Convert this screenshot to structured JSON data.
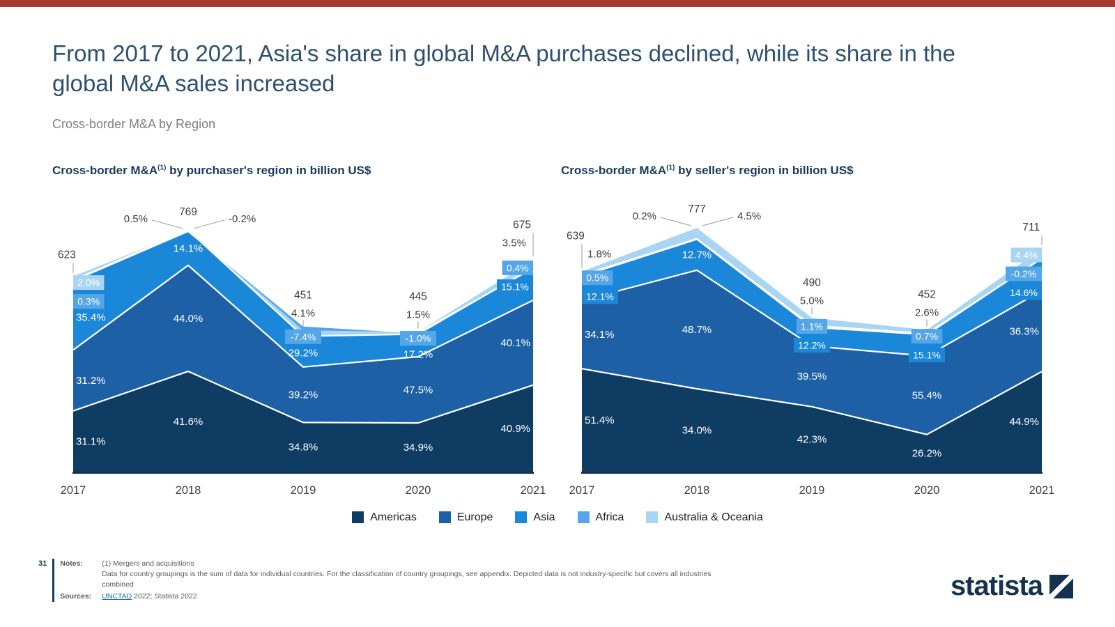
{
  "page": {
    "title": "From 2017 to 2021, Asia's share in global M&A purchases declined, while its share in the global M&A sales increased",
    "subtitle": "Cross-border M&A by Region",
    "accent_color": "#a93b2e"
  },
  "chart_data": [
    {
      "type": "area",
      "stacked": true,
      "title_prefix": "Cross-border M&A",
      "title_sup": "(1)",
      "title_suffix": " by purchaser's region in billion US$",
      "years": [
        "2017",
        "2018",
        "2019",
        "2020",
        "2021"
      ],
      "totals": [
        623,
        769,
        451,
        445,
        675
      ],
      "ylim": [
        0,
        800
      ],
      "series": [
        {
          "name": "Americas",
          "color": "#0f3c63",
          "values_pct": [
            31.1,
            41.6,
            34.8,
            34.9,
            40.9
          ],
          "label_modes": [
            "plain",
            "plain",
            "plain",
            "plain",
            "plain"
          ]
        },
        {
          "name": "Europe",
          "color": "#1d60a6",
          "values_pct": [
            31.2,
            44.0,
            39.2,
            47.5,
            40.1
          ],
          "label_modes": [
            "plain",
            "plain",
            "plain",
            "plain",
            "plain"
          ]
        },
        {
          "name": "Asia",
          "color": "#1b87d8",
          "values_pct": [
            35.4,
            14.1,
            29.2,
            17.2,
            15.1
          ],
          "label_modes": [
            "plain",
            "plain",
            "plain",
            "plain",
            "box"
          ]
        },
        {
          "name": "Africa",
          "color": "#55a6e8",
          "values_pct": [
            0.3,
            0.5,
            -7.4,
            -1.0,
            0.4
          ],
          "label_modes": [
            "box",
            "callout-left",
            "box",
            "box",
            "box"
          ]
        },
        {
          "name": "Australia & Oceania",
          "color": "#a9d5f5",
          "values_pct": [
            2.0,
            -0.2,
            4.1,
            1.5,
            3.5
          ],
          "label_modes": [
            "box",
            "callout-right",
            "callout",
            "callout",
            "callout"
          ]
        }
      ]
    },
    {
      "type": "area",
      "stacked": true,
      "title_prefix": "Cross-border M&A",
      "title_sup": "(1)",
      "title_suffix": " by seller's region in billion US$",
      "years": [
        "2017",
        "2018",
        "2019",
        "2020",
        "2021"
      ],
      "totals": [
        639,
        777,
        490,
        452,
        711
      ],
      "ylim": [
        0,
        800
      ],
      "series": [
        {
          "name": "Americas",
          "color": "#0f3c63",
          "values_pct": [
            51.4,
            34.0,
            42.3,
            26.2,
            44.9
          ],
          "label_modes": [
            "plain",
            "plain",
            "plain",
            "plain",
            "plain"
          ]
        },
        {
          "name": "Europe",
          "color": "#1d60a6",
          "values_pct": [
            34.1,
            48.7,
            39.5,
            55.4,
            36.3
          ],
          "label_modes": [
            "plain",
            "plain",
            "plain",
            "plain",
            "plain"
          ]
        },
        {
          "name": "Asia",
          "color": "#1b87d8",
          "values_pct": [
            12.1,
            12.7,
            12.2,
            15.1,
            14.6
          ],
          "label_modes": [
            "box",
            "plain",
            "box",
            "box",
            "box"
          ]
        },
        {
          "name": "Africa",
          "color": "#55a6e8",
          "values_pct": [
            0.5,
            0.2,
            1.1,
            0.7,
            -0.2
          ],
          "label_modes": [
            "box",
            "callout-left",
            "box",
            "box",
            "box"
          ]
        },
        {
          "name": "Australia & Oceania",
          "color": "#a9d5f5",
          "values_pct": [
            1.8,
            4.5,
            5.0,
            2.6,
            4.4
          ],
          "label_modes": [
            "callout",
            "callout-right",
            "callout",
            "callout",
            "box"
          ]
        }
      ]
    }
  ],
  "legend": [
    {
      "label": "Americas",
      "color": "#0f3c63"
    },
    {
      "label": "Europe",
      "color": "#1d60a6"
    },
    {
      "label": "Asia",
      "color": "#1b87d8"
    },
    {
      "label": "Africa",
      "color": "#55a6e8"
    },
    {
      "label": "Australia & Oceania",
      "color": "#a9d5f5"
    }
  ],
  "footer": {
    "page_number": "31",
    "notes_label": "Notes:",
    "notes_line1": "(1) Mergers and acquisitions",
    "notes_line2": "Data for country groupings is the sum of data for individual countries. For the classification of country groupings, see appendix. Depicted data is not industry-specific but covers all industries combined",
    "sources_label": "Sources:",
    "source_link": "UNCTAD",
    "source_rest": " 2022; Statista 2022",
    "brand": "statista"
  }
}
